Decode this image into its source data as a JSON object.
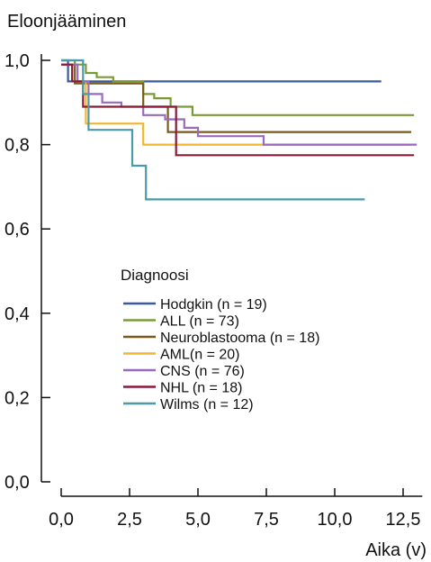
{
  "chart_data": {
    "type": "line",
    "title": "",
    "ylabel": "Eloonjääminen",
    "xlabel": "Aika (v)",
    "xlim": [
      0,
      13.2
    ],
    "ylim": [
      0,
      1.0
    ],
    "xticks": [
      "0,0",
      "2,5",
      "5,0",
      "7,5",
      "10,0",
      "12,5"
    ],
    "xtick_values": [
      0,
      2.5,
      5.0,
      7.5,
      10.0,
      12.5
    ],
    "yticks": [
      "0,0",
      "0,2",
      "0,4",
      "0,6",
      "0,8",
      "1,0"
    ],
    "ytick_values": [
      0,
      0.2,
      0.4,
      0.6,
      0.8,
      1.0
    ],
    "legend_title": "Diagnoosi",
    "legend_placement": "center-left",
    "grid": false,
    "series": [
      {
        "name": "Hodgkin (n = 19)",
        "color": "#3a5a9c",
        "x": [
          0,
          0.25,
          0.25,
          11.7
        ],
        "y": [
          1.0,
          1.0,
          0.95,
          0.95
        ]
      },
      {
        "name": "ALL (n = 73)",
        "color": "#7a9a3a",
        "x": [
          0,
          0.5,
          0.5,
          0.9,
          0.9,
          1.3,
          1.3,
          1.9,
          1.9,
          3.0,
          3.0,
          3.4,
          3.4,
          4.0,
          4.0,
          4.8,
          4.8,
          12.9
        ],
        "y": [
          1.0,
          1.0,
          0.99,
          0.99,
          0.97,
          0.97,
          0.96,
          0.96,
          0.95,
          0.95,
          0.92,
          0.92,
          0.91,
          0.91,
          0.89,
          0.89,
          0.87,
          0.87
        ]
      },
      {
        "name": "Neuroblastooma (n = 18)",
        "color": "#7a5a1a",
        "x": [
          0,
          0.5,
          0.5,
          3.0,
          3.0,
          3.9,
          3.9,
          12.8
        ],
        "y": [
          0.99,
          0.99,
          0.945,
          0.945,
          0.89,
          0.89,
          0.83,
          0.83
        ]
      },
      {
        "name": "AML(n = 20)",
        "color": "#f0b830",
        "x": [
          0,
          0.4,
          0.4,
          0.9,
          0.9,
          3.0,
          3.0,
          12.8
        ],
        "y": [
          0.99,
          0.99,
          0.95,
          0.95,
          0.85,
          0.85,
          0.8,
          0.8
        ]
      },
      {
        "name": "CNS (n = 76)",
        "color": "#9a6ac0",
        "x": [
          0,
          0.6,
          0.6,
          1.0,
          1.0,
          1.5,
          1.5,
          2.2,
          2.2,
          3.0,
          3.0,
          3.8,
          3.8,
          4.5,
          4.5,
          5.0,
          5.0,
          7.4,
          7.4,
          13.0
        ],
        "y": [
          0.99,
          0.99,
          0.95,
          0.95,
          0.92,
          0.92,
          0.9,
          0.9,
          0.89,
          0.89,
          0.87,
          0.87,
          0.86,
          0.86,
          0.84,
          0.84,
          0.82,
          0.82,
          0.8,
          0.8
        ]
      },
      {
        "name": "NHL (n = 18)",
        "color": "#8a1a3a",
        "x": [
          0,
          0.4,
          0.4,
          0.8,
          0.8,
          4.2,
          4.2,
          12.9
        ],
        "y": [
          0.99,
          0.99,
          0.95,
          0.95,
          0.89,
          0.89,
          0.775,
          0.775
        ]
      },
      {
        "name": "Wilms (n = 12)",
        "color": "#4a9aaa",
        "x": [
          0,
          0.8,
          0.8,
          1.0,
          1.0,
          2.6,
          2.6,
          3.1,
          3.1,
          11.1
        ],
        "y": [
          1.0,
          1.0,
          0.92,
          0.92,
          0.835,
          0.835,
          0.75,
          0.75,
          0.67,
          0.67
        ]
      }
    ]
  }
}
